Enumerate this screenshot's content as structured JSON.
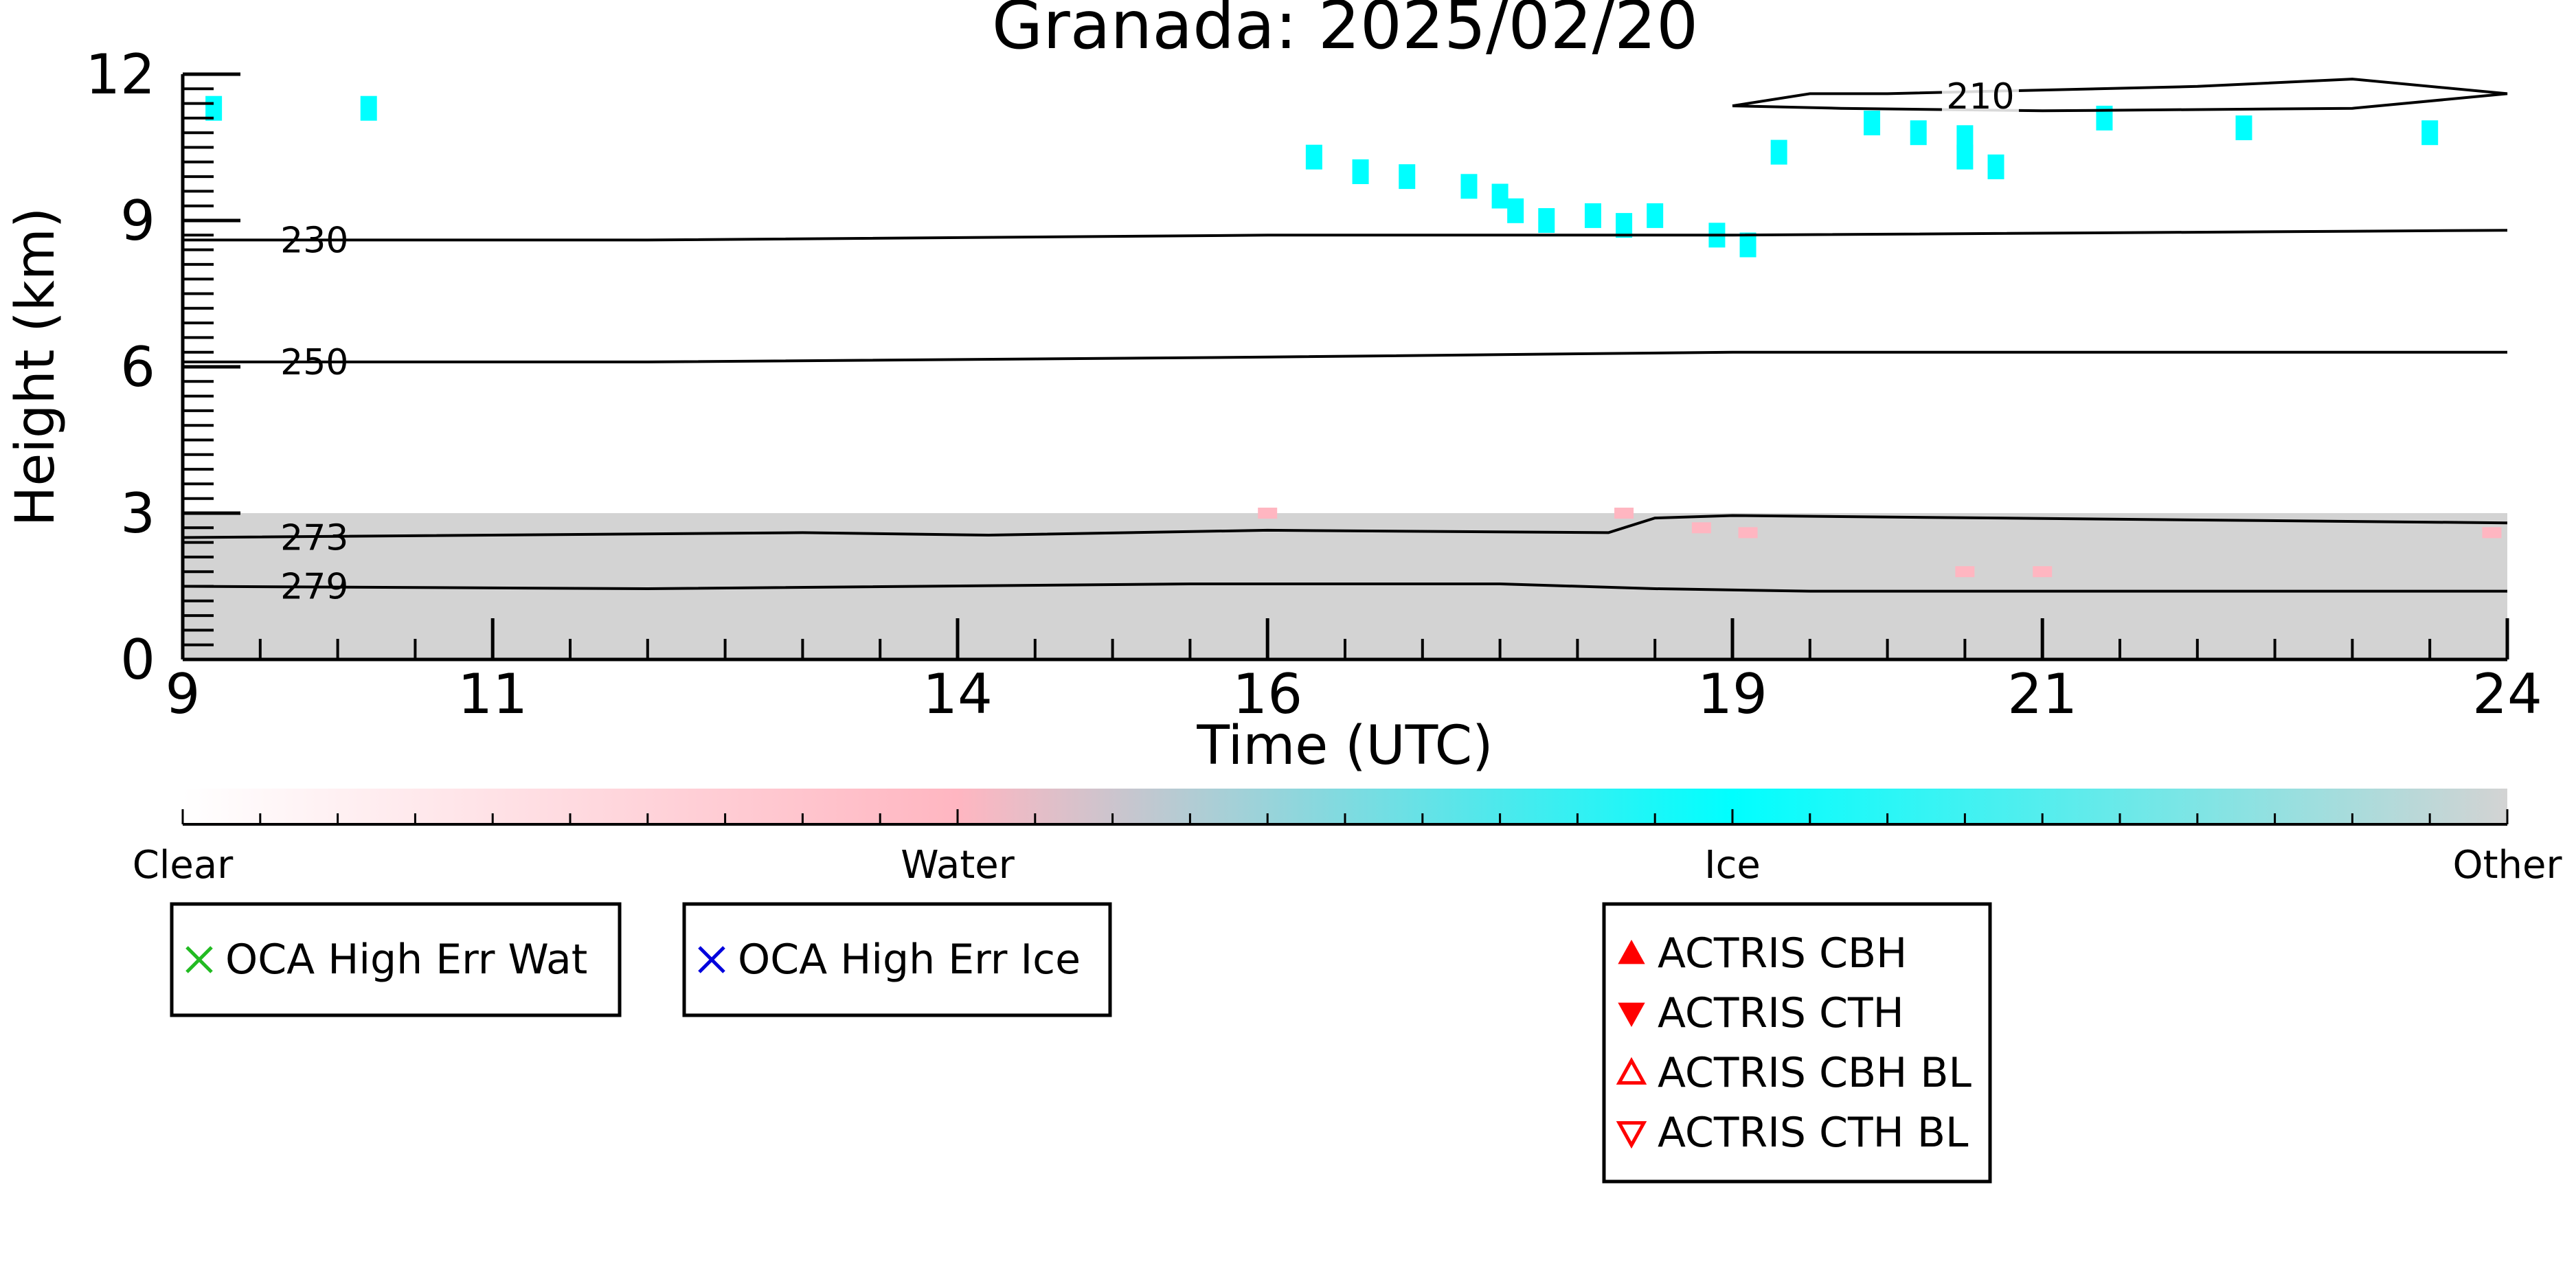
{
  "chart_data": {
    "type": "heatmap",
    "title": "Granada: 2025/02/20",
    "xlabel": "Time (UTC)",
    "ylabel": "Height (km)",
    "xlim": [
      9,
      24
    ],
    "ylim": [
      0,
      12
    ],
    "x_ticks": [
      9,
      11,
      14,
      16,
      19,
      21,
      24
    ],
    "y_ticks": [
      0,
      3,
      6,
      9,
      12
    ],
    "colorbar": {
      "stops": [
        "Clear",
        "Water",
        "Ice",
        "Other"
      ],
      "colors": [
        "#ffffff",
        "#ffb6c1",
        "#00ffff",
        "#d3d3d3"
      ]
    },
    "classes": {
      "other": [
        {
          "x0": 9.0,
          "x1": 24.0,
          "y0": 0.0,
          "y1": 3.0
        }
      ],
      "ice": [
        {
          "x": 9.2,
          "y": 11.3
        },
        {
          "x": 10.2,
          "y": 11.3
        },
        {
          "x": 16.3,
          "y": 10.3
        },
        {
          "x": 16.6,
          "y": 10.0
        },
        {
          "x": 16.9,
          "y": 9.9
        },
        {
          "x": 17.3,
          "y": 9.7
        },
        {
          "x": 17.5,
          "y": 9.5
        },
        {
          "x": 17.6,
          "y": 9.2
        },
        {
          "x": 17.8,
          "y": 9.0
        },
        {
          "x": 18.1,
          "y": 9.1
        },
        {
          "x": 18.3,
          "y": 8.9
        },
        {
          "x": 18.5,
          "y": 9.1
        },
        {
          "x": 18.9,
          "y": 8.7
        },
        {
          "x": 19.1,
          "y": 8.5
        },
        {
          "x": 19.3,
          "y": 10.4
        },
        {
          "x": 19.9,
          "y": 11.0
        },
        {
          "x": 20.2,
          "y": 10.8
        },
        {
          "x": 20.5,
          "y": 10.3
        },
        {
          "x": 20.7,
          "y": 10.1
        },
        {
          "x": 20.5,
          "y": 10.7
        },
        {
          "x": 21.4,
          "y": 11.1
        },
        {
          "x": 22.3,
          "y": 10.9
        },
        {
          "x": 23.5,
          "y": 10.8
        }
      ],
      "water": [
        {
          "x": 16.0,
          "y": 3.0
        },
        {
          "x": 18.3,
          "y": 3.0
        },
        {
          "x": 18.8,
          "y": 2.7
        },
        {
          "x": 19.1,
          "y": 2.6
        },
        {
          "x": 20.5,
          "y": 1.8
        },
        {
          "x": 21.0,
          "y": 1.8
        },
        {
          "x": 23.9,
          "y": 2.6
        }
      ]
    },
    "temperature_contours": [
      {
        "label": "230",
        "points": [
          [
            9,
            8.6
          ],
          [
            12,
            8.6
          ],
          [
            16,
            8.7
          ],
          [
            19,
            8.7
          ],
          [
            24,
            8.8
          ]
        ]
      },
      {
        "label": "250",
        "points": [
          [
            9,
            6.1
          ],
          [
            12,
            6.1
          ],
          [
            16,
            6.2
          ],
          [
            19,
            6.3
          ],
          [
            24,
            6.3
          ]
        ]
      },
      {
        "label": "273",
        "points": [
          [
            9,
            2.5
          ],
          [
            13,
            2.6
          ],
          [
            14.2,
            2.55
          ],
          [
            16,
            2.65
          ],
          [
            18.2,
            2.6
          ],
          [
            18.5,
            2.9
          ],
          [
            19,
            2.95
          ],
          [
            24,
            2.8
          ]
        ]
      },
      {
        "label": "279",
        "points": [
          [
            9,
            1.5
          ],
          [
            12,
            1.45
          ],
          [
            15.5,
            1.55
          ],
          [
            17.5,
            1.55
          ],
          [
            18.5,
            1.45
          ],
          [
            19.5,
            1.4
          ],
          [
            24,
            1.4
          ]
        ]
      },
      {
        "label": "210",
        "points": [
          [
            19,
            11.35
          ],
          [
            19.5,
            11.6
          ],
          [
            20,
            11.6
          ],
          [
            22,
            11.75
          ],
          [
            23,
            11.9
          ],
          [
            24,
            11.6
          ],
          [
            23,
            11.3
          ],
          [
            21,
            11.25
          ],
          [
            19.7,
            11.3
          ],
          [
            19,
            11.35
          ]
        ]
      }
    ],
    "legends": [
      {
        "items": [
          {
            "symbol": "x",
            "color": "#22bb22",
            "label": "OCA High Err Wat"
          }
        ]
      },
      {
        "items": [
          {
            "symbol": "x",
            "color": "#0000dd",
            "label": "OCA High Err Ice"
          }
        ]
      },
      {
        "items": [
          {
            "symbol": "triangle-up-filled",
            "color": "#ff0000",
            "label": "ACTRIS CBH"
          },
          {
            "symbol": "triangle-down-filled",
            "color": "#ff0000",
            "label": "ACTRIS CTH"
          },
          {
            "symbol": "triangle-up-open",
            "color": "#ff0000",
            "label": "ACTRIS CBH BL"
          },
          {
            "symbol": "triangle-down-open",
            "color": "#ff0000",
            "label": "ACTRIS CTH BL"
          }
        ]
      }
    ]
  }
}
